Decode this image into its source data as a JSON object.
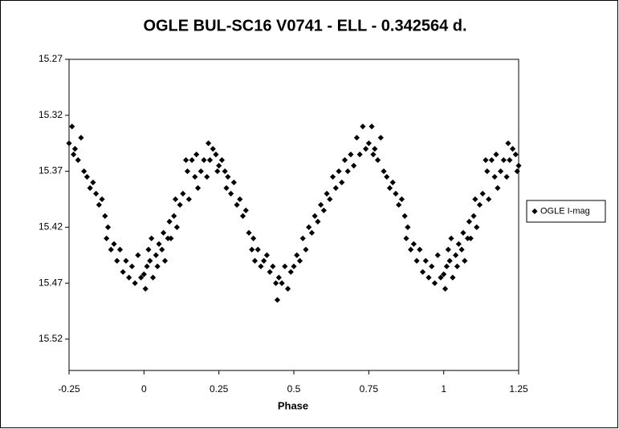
{
  "chart_data": {
    "type": "scatter",
    "title": "OGLE BUL-SC16 V0741 - ELL - 0.342564 d.",
    "x_label": "Phase",
    "xlim": [
      -0.25,
      1.25
    ],
    "xticks": [
      -0.25,
      0,
      0.25,
      0.5,
      0.75,
      1,
      1.25
    ],
    "ylim": [
      15.27,
      15.548
    ],
    "yticks": [
      15.27,
      15.32,
      15.37,
      15.42,
      15.47,
      15.52
    ],
    "y_reversed": true,
    "grid": false,
    "legend": "right",
    "series": [
      {
        "name": "OGLE I-mag",
        "color": "#000000",
        "marker": "diamond",
        "x": [
          -0.25,
          -0.24,
          -0.235,
          -0.23,
          -0.22,
          -0.21,
          -0.2,
          -0.19,
          -0.18,
          -0.17,
          -0.16,
          -0.15,
          -0.14,
          -0.13,
          -0.125,
          -0.12,
          -0.11,
          -0.1,
          -0.09,
          -0.08,
          -0.07,
          -0.06,
          -0.05,
          -0.04,
          -0.03,
          -0.02,
          -0.01,
          0,
          0.005,
          0.01,
          0.015,
          0.02,
          0.025,
          0.03,
          0.04,
          0.045,
          0.05,
          0.06,
          0.065,
          0.07,
          0.08,
          0.085,
          0.09,
          0.1,
          0.105,
          0.11,
          0.12,
          0.13,
          0.14,
          0.145,
          0.15,
          0.16,
          0.17,
          0.175,
          0.18,
          0.19,
          0.2,
          0.21,
          0.215,
          0.22,
          0.23,
          0.24,
          0.245,
          0.25,
          0.26,
          0.27,
          0.275,
          0.28,
          0.29,
          0.3,
          0.31,
          0.32,
          0.33,
          0.34,
          0.35,
          0.36,
          0.365,
          0.37,
          0.38,
          0.39,
          0.4,
          0.41,
          0.42,
          0.43,
          0.44,
          0.445,
          0.45,
          0.46,
          0.47,
          0.48,
          0.49,
          0.5,
          0.51,
          0.52,
          0.53,
          0.54,
          0.55,
          0.56,
          0.57,
          0.58,
          0.59,
          0.6,
          0.61,
          0.62,
          0.63,
          0.64,
          0.65,
          0.66,
          0.67,
          0.68,
          0.69,
          0.7,
          0.71,
          0.72,
          0.73,
          0.74,
          0.75,
          0.76,
          0.765,
          0.77,
          0.78,
          0.79,
          0.8,
          0.81,
          0.82,
          0.83,
          0.84,
          0.85,
          0.86,
          0.87,
          0.875,
          0.88,
          0.89,
          0.9,
          0.91,
          0.92,
          0.93,
          0.94,
          0.95,
          0.96,
          0.97,
          0.98,
          0.99,
          1,
          1.005,
          1.01,
          1.015,
          1.02,
          1.025,
          1.03,
          1.04,
          1.045,
          1.05,
          1.06,
          1.065,
          1.07,
          1.08,
          1.085,
          1.09,
          1.1,
          1.105,
          1.11,
          1.12,
          1.13,
          1.14,
          1.145,
          1.15,
          1.16,
          1.17,
          1.175,
          1.18,
          1.19,
          1.2,
          1.21,
          1.215,
          1.22,
          1.23,
          1.24,
          1.245,
          1.25
        ],
        "values": [
          15.345,
          15.33,
          15.355,
          15.35,
          15.36,
          15.34,
          15.37,
          15.375,
          15.385,
          15.38,
          15.39,
          15.4,
          15.395,
          15.41,
          15.43,
          15.42,
          15.44,
          15.435,
          15.45,
          15.44,
          15.46,
          15.45,
          15.465,
          15.455,
          15.47,
          15.445,
          15.465,
          15.462,
          15.475,
          15.455,
          15.44,
          15.45,
          15.43,
          15.465,
          15.445,
          15.455,
          15.435,
          15.44,
          15.425,
          15.45,
          15.43,
          15.415,
          15.43,
          15.41,
          15.395,
          15.42,
          15.4,
          15.39,
          15.36,
          15.37,
          15.395,
          15.36,
          15.375,
          15.355,
          15.385,
          15.37,
          15.36,
          15.375,
          15.345,
          15.36,
          15.35,
          15.355,
          15.37,
          15.365,
          15.36,
          15.37,
          15.385,
          15.375,
          15.39,
          15.38,
          15.4,
          15.395,
          15.41,
          15.405,
          15.425,
          15.44,
          15.43,
          15.45,
          15.44,
          15.455,
          15.45,
          15.445,
          15.46,
          15.455,
          15.47,
          15.485,
          15.465,
          15.47,
          15.455,
          15.475,
          15.46,
          15.455,
          15.445,
          15.45,
          15.43,
          15.44,
          15.42,
          15.425,
          15.41,
          15.415,
          15.4,
          15.405,
          15.39,
          15.395,
          15.375,
          15.385,
          15.37,
          15.38,
          15.36,
          15.37,
          15.355,
          15.365,
          15.34,
          15.355,
          15.33,
          15.35,
          15.345,
          15.33,
          15.355,
          15.35,
          15.36,
          15.34,
          15.37,
          15.375,
          15.385,
          15.38,
          15.39,
          15.4,
          15.395,
          15.41,
          15.43,
          15.42,
          15.44,
          15.435,
          15.45,
          15.44,
          15.46,
          15.45,
          15.465,
          15.455,
          15.47,
          15.445,
          15.465,
          15.462,
          15.475,
          15.455,
          15.44,
          15.45,
          15.43,
          15.465,
          15.445,
          15.455,
          15.435,
          15.44,
          15.425,
          15.45,
          15.43,
          15.415,
          15.43,
          15.41,
          15.395,
          15.42,
          15.4,
          15.39,
          15.36,
          15.37,
          15.395,
          15.36,
          15.375,
          15.355,
          15.385,
          15.37,
          15.36,
          15.375,
          15.345,
          15.36,
          15.35,
          15.355,
          15.37,
          15.365
        ]
      }
    ]
  }
}
